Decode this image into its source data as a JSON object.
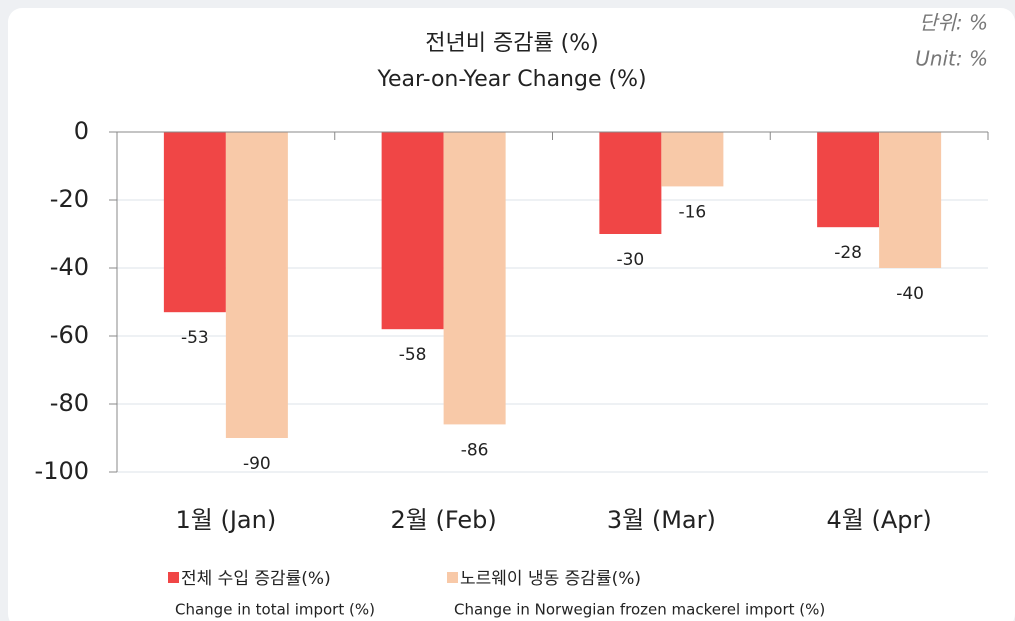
{
  "chart_data": {
    "type": "bar",
    "title": "전년비 증감률 (%)",
    "subtitle": "Year-on-Year Change (%)",
    "unit_note": "단위: %",
    "unit_note_en": "Unit: %",
    "categories": [
      "1월 (Jan)",
      "2월 (Feb)",
      "3월 (Mar)",
      "4월 (Apr)"
    ],
    "series": [
      {
        "name": "전체 수입 증감률(%)",
        "name_en": "Change in total import (%)",
        "color": "#f04646",
        "values": [
          -53,
          -58,
          -30,
          -28
        ]
      },
      {
        "name": "노르웨이 냉동 증감률(%)",
        "name_en": "Change in Norwegian frozen mackerel import (%)",
        "color": "#f8c9a8",
        "values": [
          -90,
          -86,
          -16,
          -40
        ]
      }
    ],
    "ylim": [
      -100,
      0
    ],
    "yticks": [
      0,
      -20,
      -40,
      -60,
      -80,
      -100
    ],
    "grid": true,
    "legend": "bottom"
  }
}
